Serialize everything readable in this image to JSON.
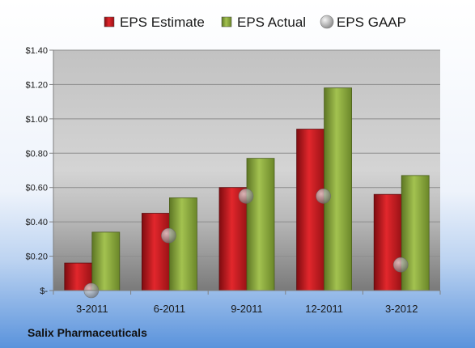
{
  "company_label": "Salix Pharmaceuticals",
  "chart_data": {
    "type": "bar",
    "title": "",
    "xlabel": "",
    "ylabel": "",
    "categories": [
      "3-2011",
      "6-2011",
      "9-2011",
      "12-2011",
      "3-2012"
    ],
    "series": [
      {
        "name": "EPS Estimate",
        "kind": "bar",
        "color": "#cc1f24",
        "values": [
          0.16,
          0.45,
          0.6,
          0.94,
          0.56
        ]
      },
      {
        "name": "EPS Actual",
        "kind": "bar",
        "color": "#8fae3c",
        "values": [
          0.34,
          0.54,
          0.77,
          1.18,
          0.67
        ]
      },
      {
        "name": "EPS GAAP",
        "kind": "marker",
        "color": "#9a9a9a",
        "values": [
          0.0,
          0.32,
          0.55,
          0.55,
          0.15
        ]
      }
    ],
    "ylim": [
      0,
      1.4
    ],
    "yticks": [
      0,
      0.2,
      0.4,
      0.6,
      0.8,
      1.0,
      1.2,
      1.4
    ],
    "ytick_labels": [
      "$-",
      "$0.20",
      "$0.40",
      "$0.60",
      "$0.80",
      "$1.00",
      "$1.20",
      "$1.40"
    ],
    "grid": true,
    "legend_position": "top"
  }
}
